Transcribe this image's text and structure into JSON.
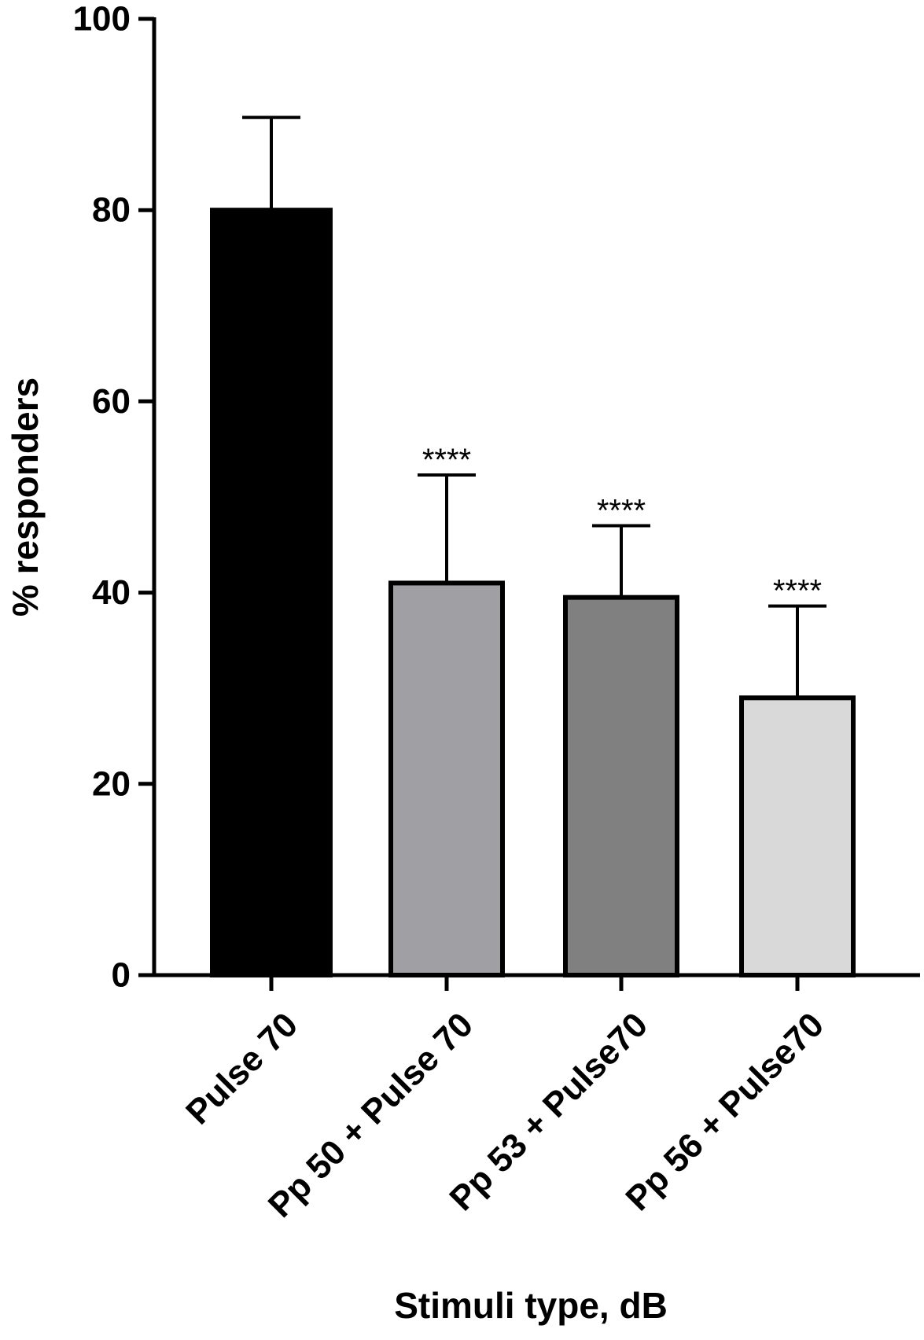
{
  "chart_data": {
    "type": "bar",
    "title": "",
    "xlabel": "Stimuli type, dB",
    "ylabel": "% responders",
    "ylim": [
      0,
      100
    ],
    "yticks": [
      0,
      20,
      40,
      60,
      80,
      100
    ],
    "ytick_labels": [
      "0",
      "20",
      "40",
      "60",
      "80",
      "100"
    ],
    "categories": [
      "Pulse 70",
      "Pp 50 + Pulse 70",
      "Pp 53 + Pulse70",
      "Pp 56 + Pulse70"
    ],
    "values": [
      80,
      41,
      39.5,
      29
    ],
    "error_upper": [
      89.7,
      52.3,
      47,
      38.6
    ],
    "annotations": [
      "",
      "****",
      "****",
      "****"
    ],
    "colors": [
      "#000000",
      "#a0a0a4",
      "#808080",
      "#d9d9d9"
    ],
    "edge_color": "#000000",
    "grid": false
  }
}
